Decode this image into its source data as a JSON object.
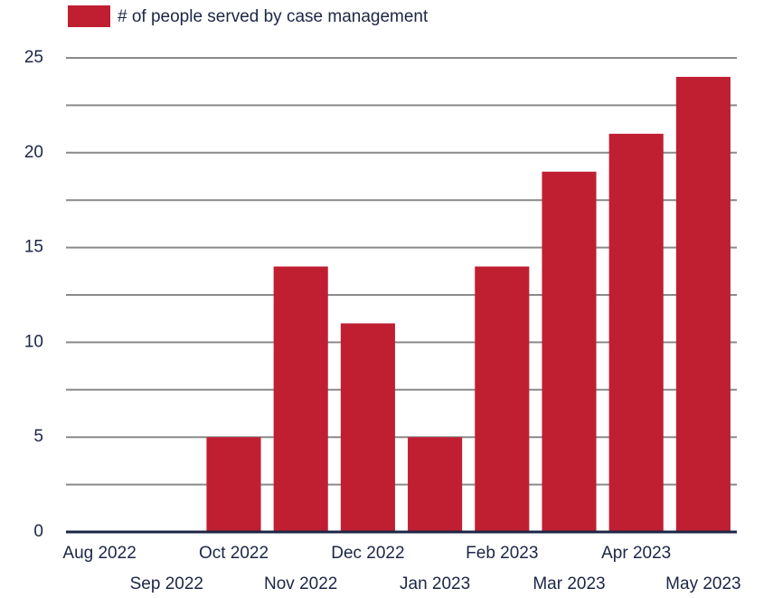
{
  "chart_data": {
    "type": "bar",
    "series_name": "# of people served by case management",
    "categories": [
      "Aug 2022",
      "Sep 2022",
      "Oct 2022",
      "Nov 2022",
      "Dec 2022",
      "Jan 2023",
      "Feb 2023",
      "Mar 2023",
      "Apr 2023",
      "May 2023"
    ],
    "values": [
      0,
      0,
      5,
      14,
      11,
      5,
      14,
      19,
      21,
      24
    ],
    "color": "#c01f32",
    "ylim": [
      0,
      25
    ],
    "yticks": [
      0,
      5,
      10,
      15,
      20,
      25
    ],
    "grid": true,
    "minor_grid": true,
    "legend": "top"
  }
}
